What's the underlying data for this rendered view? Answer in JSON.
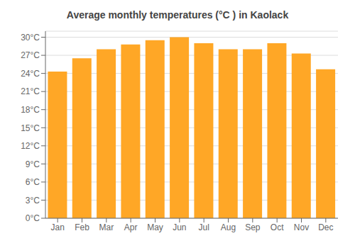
{
  "chart_data": {
    "type": "bar",
    "title": "Average monthly temperatures (°C ) in Kaolack",
    "categories": [
      "Jan",
      "Feb",
      "Mar",
      "Apr",
      "May",
      "Jun",
      "Jul",
      "Aug",
      "Sep",
      "Oct",
      "Nov",
      "Dec"
    ],
    "values": [
      24.3,
      26.5,
      28.0,
      28.8,
      29.5,
      30.0,
      29.0,
      28.0,
      28.0,
      29.0,
      27.3,
      24.7
    ],
    "color": "#FFA726",
    "ylim": [
      0,
      31
    ],
    "yticks": [
      {
        "value": 0,
        "label": "0°C"
      },
      {
        "value": 3,
        "label": "3°C"
      },
      {
        "value": 6,
        "label": "6°C"
      },
      {
        "value": 9,
        "label": "9°C"
      },
      {
        "value": 12,
        "label": "12°C"
      },
      {
        "value": 15,
        "label": "15°C"
      },
      {
        "value": 18,
        "label": "18°C"
      },
      {
        "value": 21,
        "label": "21°C"
      },
      {
        "value": 24,
        "label": "24°C"
      },
      {
        "value": 27,
        "label": "27°C"
      },
      {
        "value": 30,
        "label": "30°C"
      }
    ],
    "grid": true
  }
}
